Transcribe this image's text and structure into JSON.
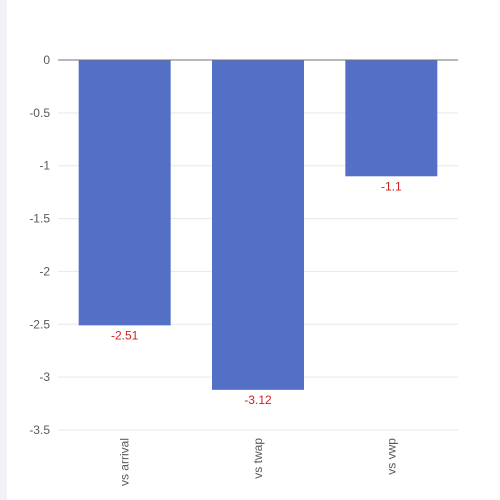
{
  "chart_data": {
    "type": "bar",
    "categories": [
      "vs arrival",
      "vs twap",
      "vs vwp"
    ],
    "values": [
      -2.51,
      -3.12,
      -1.1
    ],
    "data_labels": [
      "-2.51",
      "-3.12",
      "-1.1"
    ],
    "y_ticks": [
      "0",
      "-0.5",
      "-1",
      "-1.5",
      "-2",
      "-2.5",
      "-3",
      "-3.5"
    ],
    "ylim": [
      -3.5,
      0
    ],
    "grid": true,
    "title": "",
    "xlabel": "",
    "ylabel": "",
    "colors": {
      "bar": "#5470c6",
      "data_label": "#d42020",
      "grid": "#e6e8ef",
      "axis": "#6e7079",
      "tick_text": "#5a5a5a"
    }
  }
}
